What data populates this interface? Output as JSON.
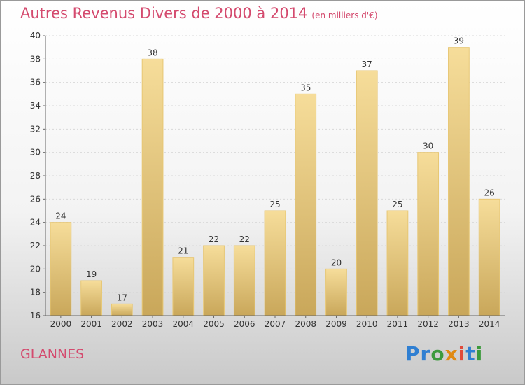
{
  "header": {
    "title": "Autres Revenus Divers de 2000 à 2014",
    "subtitle": "(en milliers d'€)"
  },
  "footer": {
    "place": "GLANNES",
    "logo": "Proxiti"
  },
  "chart_data": {
    "type": "bar",
    "title": "Autres Revenus Divers de 2000 à 2014",
    "subtitle": "(en milliers d'€)",
    "categories": [
      "2000",
      "2001",
      "2002",
      "2003",
      "2004",
      "2005",
      "2006",
      "2007",
      "2008",
      "2009",
      "2010",
      "2011",
      "2012",
      "2013",
      "2014"
    ],
    "values": [
      24,
      19,
      17,
      38,
      21,
      22,
      22,
      25,
      35,
      20,
      37,
      25,
      30,
      39,
      26
    ],
    "ylim": [
      16,
      40
    ],
    "yticks": [
      16,
      18,
      20,
      22,
      24,
      26,
      28,
      30,
      32,
      34,
      36,
      38,
      40
    ],
    "grid": true,
    "legend": "none",
    "colors": {
      "bar_top": "#f6dd9a",
      "bar_bottom": "#c9a75a",
      "bar_edge": "#e7c774"
    }
  }
}
